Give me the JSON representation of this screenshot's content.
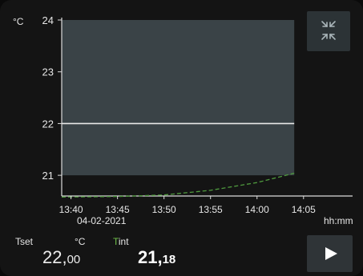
{
  "chart_data": {
    "type": "line",
    "y_unit": "°C",
    "x_unit": "hh:mm",
    "date": "04-02-2021",
    "y_ticks": [
      "24",
      "23",
      "22",
      "21"
    ],
    "x_ticks": [
      "13:40",
      "13:45",
      "13:50",
      "13:55",
      "14:00",
      "14:05"
    ],
    "ylim": [
      20.6,
      24
    ],
    "xlim": [
      "13:39",
      "14:07"
    ],
    "grid": false,
    "series": [
      {
        "role": "setpoint",
        "color": "#e8e8e8",
        "x": [
          "13:39",
          "14:04"
        ],
        "y": [
          22.0,
          22.0
        ]
      },
      {
        "role": "measured",
        "color": "#4f9a3e",
        "x": [
          "13:39",
          "13:45",
          "13:50",
          "13:55",
          "14:00",
          "14:04"
        ],
        "y": [
          20.58,
          20.59,
          20.62,
          20.71,
          20.86,
          21.04
        ]
      }
    ],
    "band": {
      "color": "#3a4347",
      "y_range": [
        21,
        24
      ],
      "x_range": [
        "13:39",
        "14:04"
      ]
    }
  },
  "readout": {
    "tset_label": "Tset",
    "unit_label": "°C",
    "tint_label_first": "T",
    "tint_label_rest": "int",
    "tint_label_color": "#6fbf4a",
    "tset_int": "22,",
    "tset_dec": "00",
    "tint_int": "21,",
    "tint_dec": "18"
  },
  "buttons": {
    "collapse_icon": "collapse-arrows-icon",
    "play_icon": "play-icon"
  }
}
